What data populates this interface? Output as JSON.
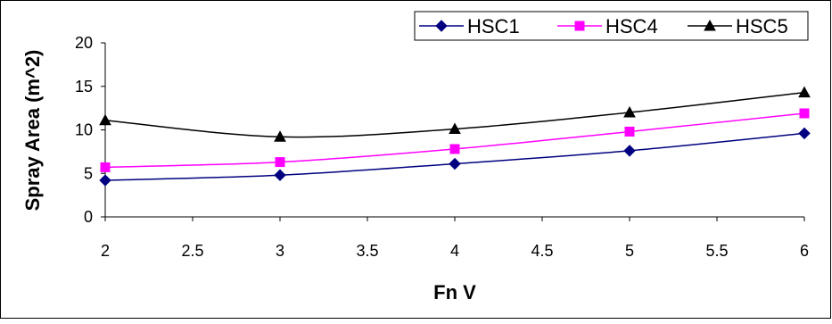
{
  "chart_data": {
    "type": "line",
    "title": "",
    "xlabel": "Fn V",
    "ylabel": "Spray Area (m^2)",
    "x": [
      2,
      3,
      4,
      5,
      6
    ],
    "x_ticks": [
      "2",
      "2.5",
      "3",
      "3.5",
      "4",
      "4.5",
      "5",
      "5.5",
      "6"
    ],
    "y_ticks": [
      "0",
      "5",
      "10",
      "15",
      "20"
    ],
    "xlim": [
      2,
      6
    ],
    "ylim": [
      0,
      20
    ],
    "grid": false,
    "legend_position": "top-right",
    "series": [
      {
        "name": "HSC1",
        "values": [
          4.2,
          4.8,
          6.1,
          7.6,
          9.6
        ],
        "color": "#000080",
        "marker": "diamond"
      },
      {
        "name": "HSC4",
        "values": [
          5.7,
          6.3,
          7.8,
          9.8,
          11.9
        ],
        "color": "#FF00FF",
        "marker": "square"
      },
      {
        "name": "HSC5",
        "values": [
          11.1,
          9.2,
          10.1,
          12.0,
          14.3
        ],
        "color": "#000000",
        "marker": "triangle"
      }
    ]
  }
}
